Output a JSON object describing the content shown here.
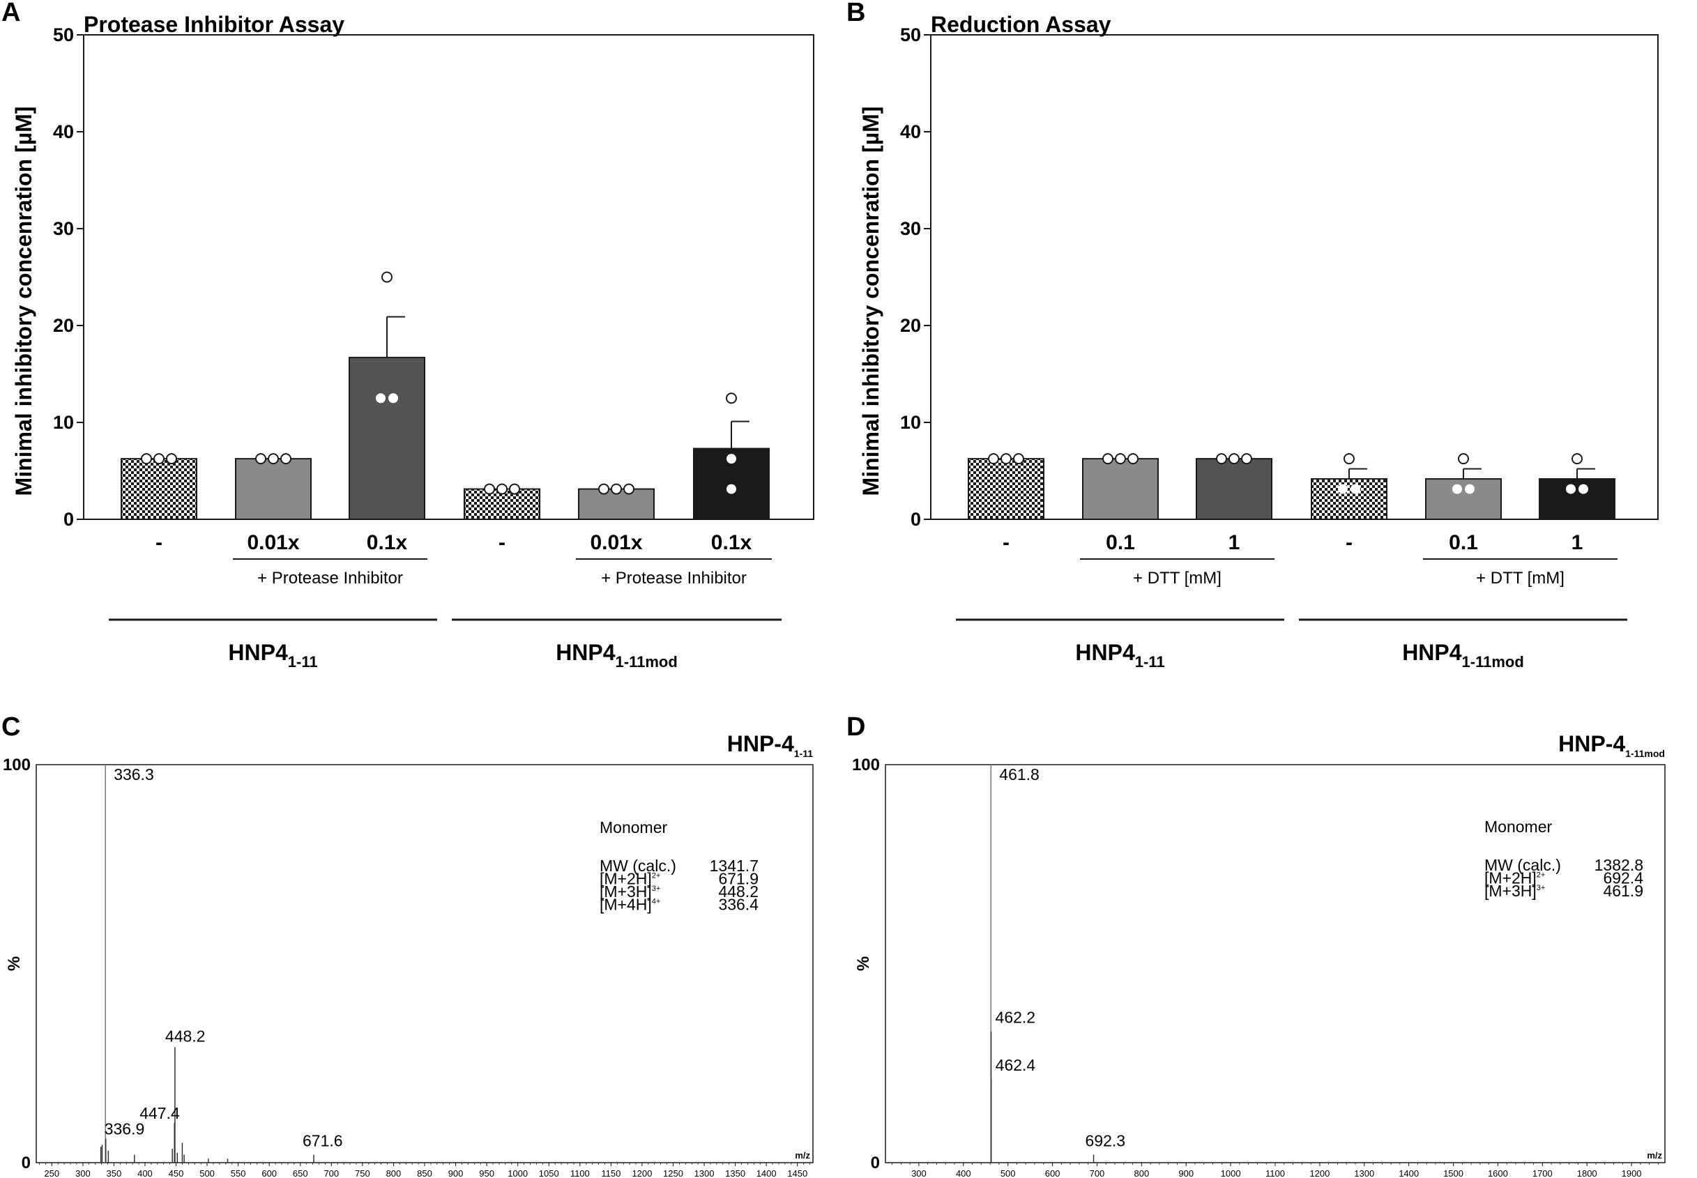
{
  "panels": {
    "A": "A",
    "B": "B",
    "C": "C",
    "D": "D"
  },
  "colors": {
    "light_gray": "#8a8a8a",
    "dark_gray": "#545454",
    "black": "#1a1a1a",
    "check_a": "#ffffff",
    "check_b": "#1e1e1e"
  },
  "chart_data": [
    {
      "panel": "A",
      "type": "bar",
      "title": "Protease Inhibitor Assay",
      "ylabel": "Minimal inhibitory concenration [µM]",
      "ylim": [
        0,
        50
      ],
      "yticks": [
        "0",
        "10",
        "20",
        "30",
        "40",
        "50"
      ],
      "categories": [
        "-",
        "0.01x",
        "0.1x",
        "-",
        "0.01x",
        "0.1x"
      ],
      "values": [
        6.25,
        6.25,
        16.7,
        3.125,
        3.125,
        7.3
      ],
      "errors": [
        0,
        0,
        4.2,
        0,
        0,
        2.8
      ],
      "points": [
        [
          6.25,
          6.25,
          6.25
        ],
        [
          6.25,
          6.25,
          6.25
        ],
        [
          25,
          12.5,
          12.5
        ],
        [
          3.125,
          3.125,
          3.125
        ],
        [
          3.125,
          3.125,
          3.125
        ],
        [
          12.5,
          6.25,
          3.125
        ]
      ],
      "fills": [
        "checker",
        "light",
        "dark",
        "checker",
        "light",
        "black"
      ],
      "treatment_label": "+ Protease Inhibitor",
      "groups": [
        {
          "name": "HNP4",
          "subscript": "1-11"
        },
        {
          "name": "HNP4",
          "subscript": "1-11mod"
        }
      ]
    },
    {
      "panel": "B",
      "type": "bar",
      "title": "Reduction Assay",
      "ylabel": "Minimal inhibitory concenration [µM]",
      "ylim": [
        0,
        50
      ],
      "yticks": [
        "0",
        "10",
        "20",
        "30",
        "40",
        "50"
      ],
      "categories": [
        "-",
        "0.1",
        "1",
        "-",
        "0.1",
        "1"
      ],
      "values": [
        6.25,
        6.25,
        6.25,
        4.17,
        4.17,
        4.17
      ],
      "errors": [
        0,
        0,
        0,
        1.04,
        1.04,
        1.04
      ],
      "points": [
        [
          6.25,
          6.25,
          6.25
        ],
        [
          6.25,
          6.25,
          6.25
        ],
        [
          6.25,
          6.25,
          6.25
        ],
        [
          6.25,
          3.125,
          3.125
        ],
        [
          6.25,
          3.125,
          3.125
        ],
        [
          6.25,
          3.125,
          3.125
        ]
      ],
      "fills": [
        "checker",
        "light",
        "dark",
        "checker",
        "light",
        "black"
      ],
      "treatment_label": "+ DTT [mM]",
      "groups": [
        {
          "name": "HNP4",
          "subscript": "1-11"
        },
        {
          "name": "HNP4",
          "subscript": "1-11mod"
        }
      ]
    },
    {
      "panel": "C",
      "type": "line",
      "title": "HNP-4",
      "title_subscript": "1-11",
      "xlabel": "m/z",
      "ylabel": "%",
      "xlim": [
        225,
        1475
      ],
      "ylim": [
        0,
        100
      ],
      "y_ticks": [
        "0",
        "100"
      ],
      "x_ticks": [
        "250",
        "300",
        "350",
        "400",
        "450",
        "500",
        "550",
        "600",
        "650",
        "700",
        "750",
        "800",
        "850",
        "900",
        "950",
        "1000",
        "1050",
        "1100",
        "1150",
        "1200",
        "1250",
        "1300",
        "1350",
        "1400",
        "1450"
      ],
      "peaks": [
        {
          "mz": 336.3,
          "intensity": 100
        },
        {
          "mz": 448.2,
          "intensity": 29
        },
        {
          "mz": 447.4,
          "intensity": 10
        },
        {
          "mz": 336.9,
          "intensity": 6
        },
        {
          "mz": 671.6,
          "intensity": 2
        },
        {
          "mz": 329,
          "intensity": 4
        },
        {
          "mz": 331,
          "intensity": 4.5
        },
        {
          "mz": 341,
          "intensity": 3
        },
        {
          "mz": 383,
          "intensity": 2
        },
        {
          "mz": 444,
          "intensity": 3.5
        },
        {
          "mz": 452,
          "intensity": 2.5
        },
        {
          "mz": 460,
          "intensity": 5
        },
        {
          "mz": 463,
          "intensity": 2
        },
        {
          "mz": 502,
          "intensity": 1
        },
        {
          "mz": 533,
          "intensity": 1
        }
      ],
      "labels": [
        {
          "text": "336.3",
          "mz": 336.3,
          "intensity": 100
        },
        {
          "text": "448.2",
          "mz": 448.2,
          "intensity": 29
        },
        {
          "text": "447.4",
          "mz": 447.4,
          "intensity": 10
        },
        {
          "text": "336.9",
          "mz": 336.9,
          "intensity": 6
        },
        {
          "text": "671.6",
          "mz": 671.6,
          "intensity": 2
        }
      ],
      "annotation": {
        "header": "Monomer",
        "rows": [
          {
            "label": "MW (calc.)",
            "sup": "",
            "value": "1341.7"
          },
          {
            "label": "[M+2H]",
            "sup": "2+",
            "value": "671.9"
          },
          {
            "label": "[M+3H]",
            "sup": "3+",
            "value": "448.2"
          },
          {
            "label": "[M+4H]",
            "sup": "4+",
            "value": "336.4"
          }
        ]
      }
    },
    {
      "panel": "D",
      "type": "line",
      "title": "HNP-4",
      "title_subscript": "1-11mod",
      "xlabel": "m/z",
      "ylabel": "%",
      "xlim": [
        225,
        1975
      ],
      "ylim": [
        0,
        100
      ],
      "y_ticks": [
        "0",
        "100"
      ],
      "x_ticks": [
        "300",
        "400",
        "500",
        "600",
        "700",
        "800",
        "900",
        "1000",
        "1100",
        "1200",
        "1300",
        "1400",
        "1500",
        "1600",
        "1700",
        "1800",
        "1900"
      ],
      "peaks": [
        {
          "mz": 461.8,
          "intensity": 100
        },
        {
          "mz": 462.2,
          "intensity": 33
        },
        {
          "mz": 462.4,
          "intensity": 21
        },
        {
          "mz": 692.3,
          "intensity": 2
        }
      ],
      "labels": [
        {
          "text": "461.8",
          "mz": 461.8,
          "intensity": 100
        },
        {
          "text": "462.2",
          "mz": 462.2,
          "intensity": 33
        },
        {
          "text": "462.4",
          "mz": 462.4,
          "intensity": 21
        },
        {
          "text": "692.3",
          "mz": 692.3,
          "intensity": 2
        }
      ],
      "annotation": {
        "header": "Monomer",
        "rows": [
          {
            "label": "MW (calc.)",
            "sup": "",
            "value": "1382.8"
          },
          {
            "label": "[M+2H]",
            "sup": "2+",
            "value": "692.4"
          },
          {
            "label": "[M+3H]",
            "sup": "3+",
            "value": "461.9"
          }
        ]
      }
    }
  ]
}
